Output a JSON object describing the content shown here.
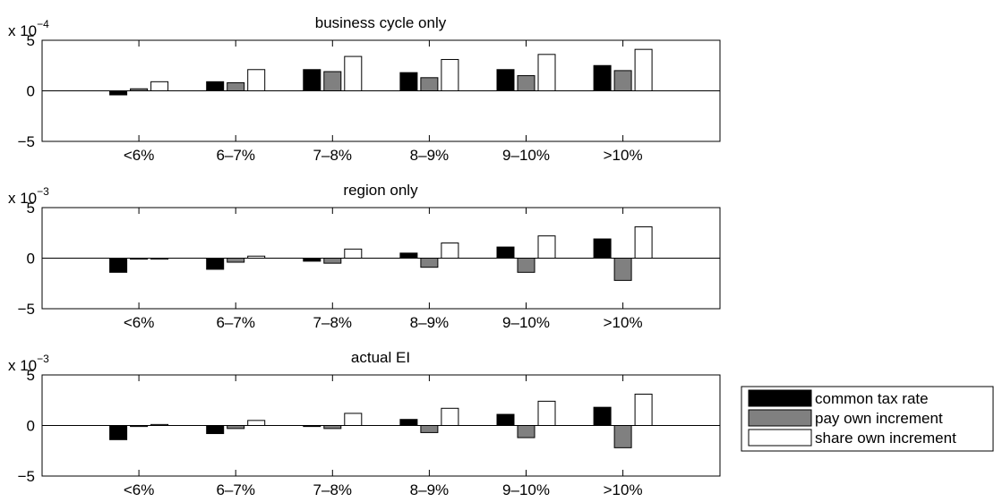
{
  "chart_data": [
    {
      "type": "bar",
      "title": "business cycle only",
      "y_exponent_label": "x 10",
      "y_exponent": "−4",
      "categories": [
        "<6%",
        "6–7%",
        "7–8%",
        "8–9%",
        "9–10%",
        ">10%"
      ],
      "y_ticks": [
        -5,
        0,
        5
      ],
      "y_tick_labels": [
        "−5",
        "0",
        "5"
      ],
      "ylim": [
        -5,
        5
      ],
      "series": [
        {
          "name": "common tax rate",
          "color": "#000000",
          "values": [
            -0.4,
            0.9,
            2.1,
            1.8,
            2.1,
            2.5
          ]
        },
        {
          "name": "pay own increment",
          "color": "#808080",
          "values": [
            0.2,
            0.8,
            1.9,
            1.3,
            1.5,
            2.0
          ]
        },
        {
          "name": "share own increment",
          "color": "#ffffff",
          "values": [
            0.9,
            2.1,
            3.4,
            3.1,
            3.6,
            4.1
          ]
        }
      ]
    },
    {
      "type": "bar",
      "title": "region only",
      "y_exponent_label": "x 10",
      "y_exponent": "−3",
      "categories": [
        "<6%",
        "6–7%",
        "7–8%",
        "8–9%",
        "9–10%",
        ">10%"
      ],
      "y_ticks": [
        -5,
        0,
        5
      ],
      "y_tick_labels": [
        "−5",
        "0",
        "5"
      ],
      "ylim": [
        -5,
        5
      ],
      "series": [
        {
          "name": "common tax rate",
          "color": "#000000",
          "values": [
            -1.4,
            -1.1,
            -0.3,
            0.5,
            1.1,
            1.9
          ]
        },
        {
          "name": "pay own increment",
          "color": "#808080",
          "values": [
            -0.1,
            -0.4,
            -0.5,
            -0.9,
            -1.4,
            -2.2
          ]
        },
        {
          "name": "share own increment",
          "color": "#ffffff",
          "values": [
            -0.1,
            0.2,
            0.9,
            1.5,
            2.2,
            3.1
          ]
        }
      ]
    },
    {
      "type": "bar",
      "title": "actual EI",
      "y_exponent_label": "x 10",
      "y_exponent": "−3",
      "categories": [
        "<6%",
        "6–7%",
        "7–8%",
        "8–9%",
        "9–10%",
        ">10%"
      ],
      "y_ticks": [
        -5,
        0,
        5
      ],
      "y_tick_labels": [
        "−5",
        "0",
        "5"
      ],
      "ylim": [
        -5,
        5
      ],
      "series": [
        {
          "name": "common tax rate",
          "color": "#000000",
          "values": [
            -1.4,
            -0.8,
            -0.1,
            0.6,
            1.1,
            1.8
          ]
        },
        {
          "name": "pay own increment",
          "color": "#808080",
          "values": [
            -0.1,
            -0.3,
            -0.3,
            -0.7,
            -1.2,
            -2.2
          ]
        },
        {
          "name": "share own increment",
          "color": "#ffffff",
          "values": [
            0.1,
            0.5,
            1.2,
            1.7,
            2.4,
            3.1
          ]
        }
      ]
    }
  ],
  "legend": {
    "placement": "right",
    "entries": [
      {
        "label": "common tax rate",
        "color": "#000000"
      },
      {
        "label": "pay own increment",
        "color": "#808080"
      },
      {
        "label": "share own increment",
        "color": "#ffffff"
      }
    ]
  }
}
